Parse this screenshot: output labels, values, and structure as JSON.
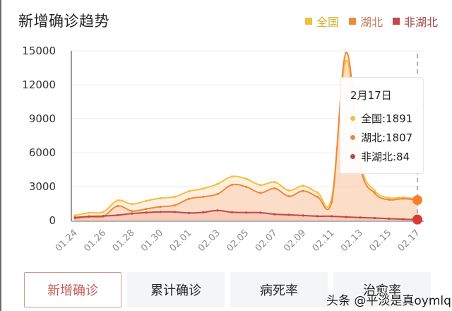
{
  "header": {
    "title": "新增确诊趋势"
  },
  "legend": [
    {
      "label": "全国",
      "color": "#f0c040"
    },
    {
      "label": "湖北",
      "color": "#ee8a3a"
    },
    {
      "label": "非湖北",
      "color": "#c04848"
    }
  ],
  "tooltip": {
    "date": "2月17日",
    "rows": [
      {
        "text": "全国:1891",
        "color": "#f0c040"
      },
      {
        "text": "湖北:1807",
        "color": "#e08a50"
      },
      {
        "text": "非湖北:84",
        "color": "#b84848"
      }
    ]
  },
  "tabs": [
    {
      "label": "新增确诊",
      "active": true
    },
    {
      "label": "累计确诊",
      "active": false
    },
    {
      "label": "病死率",
      "active": false
    },
    {
      "label": "治愈率",
      "active": false
    }
  ],
  "watermark": "头条 @平淡是真oymlq",
  "chart_data": {
    "type": "area",
    "title": "新增确诊趋势",
    "xlabel": "",
    "ylabel": "",
    "ylim": [
      0,
      15000
    ],
    "yticks": [
      0,
      3000,
      6000,
      9000,
      12000,
      15000
    ],
    "x_tick_labels": [
      "01.24",
      "01.26",
      "01.28",
      "01.30",
      "02.01",
      "02.03",
      "02.05",
      "02.07",
      "02.09",
      "02.11",
      "02.13",
      "02.15",
      "02.17"
    ],
    "grid": true,
    "legend_position": "top-right",
    "categories": [
      "01.24",
      "01.25",
      "01.26",
      "01.27",
      "01.28",
      "01.29",
      "01.30",
      "01.31",
      "02.01",
      "02.02",
      "02.03",
      "02.04",
      "02.05",
      "02.06",
      "02.07",
      "02.08",
      "02.09",
      "02.10",
      "02.11",
      "02.12",
      "02.13",
      "02.14",
      "02.15",
      "02.16",
      "02.17"
    ],
    "series": [
      {
        "name": "全国",
        "color": "#f0c040",
        "values": [
          444,
          688,
          769,
          1771,
          1459,
          1737,
          1982,
          2102,
          2590,
          2829,
          3235,
          3887,
          3694,
          3143,
          3399,
          2656,
          3062,
          2478,
          2015,
          14108,
          5090,
          2641,
          2009,
          2048,
          1891
        ]
      },
      {
        "name": "湖北",
        "color": "#ee8a3a",
        "values": [
          180,
          323,
          371,
          1291,
          840,
          1032,
          1220,
          1347,
          1921,
          2103,
          2345,
          3156,
          2987,
          2447,
          2841,
          2147,
          2618,
          2097,
          1638,
          14840,
          4823,
          2420,
          1843,
          1933,
          1807
        ]
      },
      {
        "name": "非湖北",
        "color": "#c04848",
        "values": [
          264,
          365,
          398,
          480,
          619,
          705,
          762,
          755,
          669,
          726,
          890,
          731,
          707,
          696,
          558,
          509,
          444,
          381,
          377,
          312,
          267,
          221,
          166,
          115,
          84
        ]
      }
    ],
    "highlighted_point": {
      "x": "02.17",
      "全国": 1891,
      "湖北": 1807,
      "非湖北": 84
    }
  }
}
